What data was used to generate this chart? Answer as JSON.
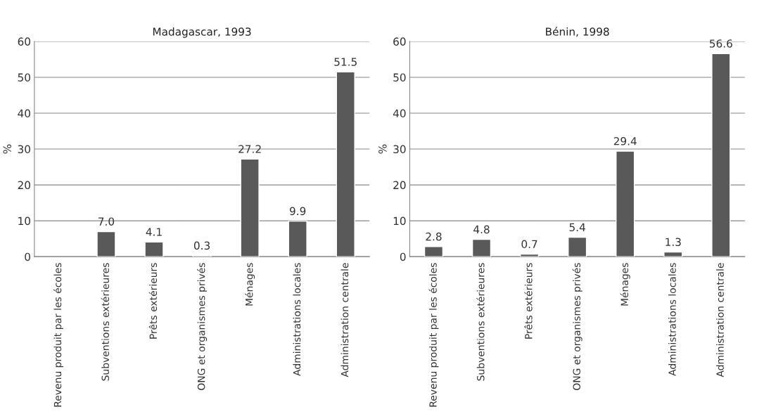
{
  "chart_data": [
    {
      "type": "bar",
      "title": "Madagascar, 1993",
      "ylabel": "%",
      "categories": [
        "Revenu produit par les écoles",
        "Subventions extérieures",
        "Prêts extérieurs",
        "ONG et organismes privés",
        "Ménages",
        "Administrations locales",
        "Administration centrale"
      ],
      "values": [
        null,
        7.0,
        4.1,
        0.3,
        27.2,
        9.9,
        51.5
      ],
      "value_labels": [
        null,
        "7.0",
        "4.1",
        "0.3",
        "27.2",
        "9.9",
        "51.5"
      ],
      "color": "#595959",
      "ylim": [
        0,
        60
      ],
      "yticks": [
        0,
        10,
        20,
        30,
        40,
        50,
        60
      ],
      "grid": "y"
    },
    {
      "type": "bar",
      "title": "Bénin, 1998",
      "ylabel": "%",
      "categories": [
        "Revenu produit par les écoles",
        "Subventions extérieures",
        "Prêts extérieurs",
        "ONG et organismes privés",
        "Ménages",
        "Administrations locales",
        "Administration centrale"
      ],
      "values": [
        2.8,
        4.8,
        0.7,
        5.4,
        29.4,
        1.3,
        56.6
      ],
      "value_labels": [
        "2.8",
        "4.8",
        "0.7",
        "5.4",
        "29.4",
        "1.3",
        "56.6"
      ],
      "color": "#595959",
      "ylim": [
        0,
        60
      ],
      "yticks": [
        0,
        10,
        20,
        30,
        40,
        50,
        60
      ],
      "grid": "y"
    }
  ]
}
